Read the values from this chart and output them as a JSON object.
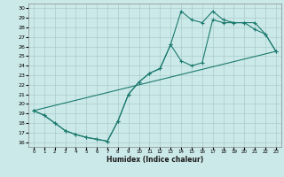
{
  "xlabel": "Humidex (Indice chaleur)",
  "bg_color": "#cce9e9",
  "grid_color": "#aacccc",
  "line_color": "#1a7a6e",
  "xlim": [
    -0.5,
    23.5
  ],
  "ylim": [
    15.5,
    30.5
  ],
  "xticks": [
    0,
    1,
    2,
    3,
    4,
    5,
    6,
    7,
    8,
    9,
    10,
    11,
    12,
    13,
    14,
    15,
    16,
    17,
    18,
    19,
    20,
    21,
    22,
    23
  ],
  "yticks": [
    16,
    17,
    18,
    19,
    20,
    21,
    22,
    23,
    24,
    25,
    26,
    27,
    28,
    29,
    30
  ],
  "line1_x": [
    0,
    1,
    2,
    3,
    4,
    5,
    6,
    7,
    8,
    9,
    10,
    11,
    12,
    13,
    14,
    15,
    16,
    17,
    18,
    19,
    20,
    21,
    22,
    23
  ],
  "line1_y": [
    19.3,
    18.8,
    18.0,
    17.2,
    16.8,
    16.5,
    16.3,
    16.1,
    18.2,
    21.0,
    22.3,
    23.2,
    23.7,
    26.2,
    24.5,
    24.0,
    24.3,
    28.8,
    28.5,
    28.5,
    28.5,
    28.5,
    27.3,
    25.5
  ],
  "line2_x": [
    0,
    1,
    2,
    3,
    4,
    5,
    6,
    7,
    8,
    9,
    10,
    11,
    12,
    13,
    14,
    15,
    16,
    17,
    18,
    19,
    20,
    21,
    22,
    23
  ],
  "line2_y": [
    19.3,
    18.8,
    18.0,
    17.2,
    16.8,
    16.5,
    16.3,
    16.1,
    18.2,
    21.0,
    22.3,
    23.2,
    23.7,
    26.2,
    29.7,
    28.8,
    28.5,
    29.7,
    28.8,
    28.5,
    28.5,
    27.8,
    27.3,
    25.5
  ],
  "line3_x": [
    0,
    23
  ],
  "line3_y": [
    19.3,
    25.5
  ]
}
